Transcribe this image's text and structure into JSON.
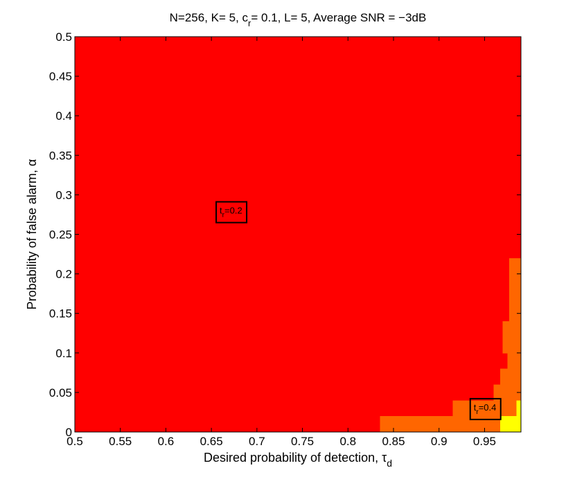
{
  "chart_data": {
    "type": "heatmap",
    "title": {
      "main": "N=256, K= 5, c",
      "sub": "r",
      "rest": "= 0.1, L= 5, Average SNR = −3dB"
    },
    "xlabel": {
      "main": "Desired probability of detection, τ",
      "sub": "d"
    },
    "ylabel": "Probability of false alarm, α",
    "xlim": [
      0.5,
      0.99
    ],
    "ylim": [
      0,
      0.5
    ],
    "xticks": [
      {
        "value": 0.5,
        "label": "0.5"
      },
      {
        "value": 0.55,
        "label": "0.55"
      },
      {
        "value": 0.6,
        "label": "0.6"
      },
      {
        "value": 0.65,
        "label": "0.65"
      },
      {
        "value": 0.7,
        "label": "0.7"
      },
      {
        "value": 0.75,
        "label": "0.75"
      },
      {
        "value": 0.8,
        "label": "0.8"
      },
      {
        "value": 0.85,
        "label": "0.85"
      },
      {
        "value": 0.9,
        "label": "0.9"
      },
      {
        "value": 0.95,
        "label": "0.95"
      }
    ],
    "yticks": [
      {
        "value": 0,
        "label": "0"
      },
      {
        "value": 0.05,
        "label": "0.05"
      },
      {
        "value": 0.1,
        "label": "0.1"
      },
      {
        "value": 0.15,
        "label": "0.15"
      },
      {
        "value": 0.2,
        "label": "0.2"
      },
      {
        "value": 0.25,
        "label": "0.25"
      },
      {
        "value": 0.3,
        "label": "0.3"
      },
      {
        "value": 0.35,
        "label": "0.35"
      },
      {
        "value": 0.4,
        "label": "0.4"
      },
      {
        "value": 0.45,
        "label": "0.45"
      },
      {
        "value": 0.5,
        "label": "0.5"
      }
    ],
    "colors": {
      "0.2": "#ff0000",
      "0.3": "#ff6600",
      "0.4": "#ffff00"
    },
    "background_value": 0.2,
    "regions": [
      {
        "value": 0.3,
        "x0": 0.835,
        "x1": 0.99,
        "y0": 0.0,
        "y1": 0.02
      },
      {
        "value": 0.3,
        "x0": 0.915,
        "x1": 0.99,
        "y0": 0.02,
        "y1": 0.04
      },
      {
        "value": 0.3,
        "x0": 0.96,
        "x1": 0.99,
        "y0": 0.04,
        "y1": 0.06
      },
      {
        "value": 0.3,
        "x0": 0.967,
        "x1": 0.99,
        "y0": 0.06,
        "y1": 0.08
      },
      {
        "value": 0.3,
        "x0": 0.975,
        "x1": 0.99,
        "y0": 0.08,
        "y1": 0.1
      },
      {
        "value": 0.3,
        "x0": 0.97,
        "x1": 0.99,
        "y0": 0.1,
        "y1": 0.14
      },
      {
        "value": 0.3,
        "x0": 0.977,
        "x1": 0.99,
        "y0": 0.14,
        "y1": 0.22
      },
      {
        "value": 0.4,
        "x0": 0.967,
        "x1": 0.99,
        "y0": 0.0,
        "y1": 0.02
      },
      {
        "value": 0.4,
        "x0": 0.985,
        "x1": 0.99,
        "y0": 0.02,
        "y1": 0.04
      }
    ],
    "annotations": [
      {
        "main": "t",
        "sub": "r",
        "rest": "=0.2",
        "x": 0.672,
        "y": 0.278
      },
      {
        "main": "t",
        "sub": "r",
        "rest": "=0.4",
        "x": 0.951,
        "y": 0.029
      }
    ]
  }
}
